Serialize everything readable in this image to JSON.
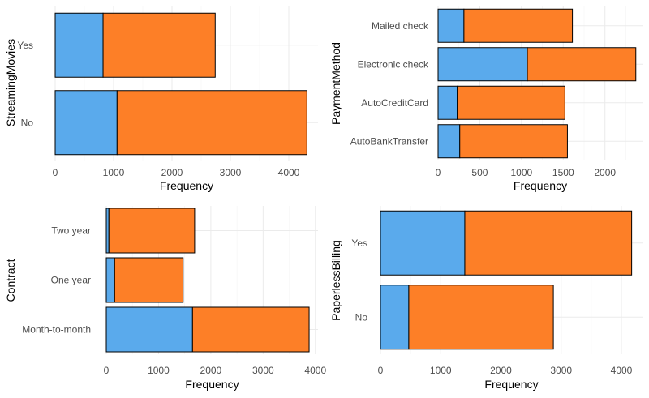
{
  "colors": {
    "primary_segment": "#5aaaec",
    "secondary_segment": "#fd7f27"
  },
  "chart_data": [
    {
      "type": "bar",
      "orientation": "horizontal",
      "stacked": true,
      "xlabel": "Frequency",
      "ylabel": "StreamingMovies",
      "categories": [
        "No",
        "Yes"
      ],
      "series": [
        {
          "values": [
            1060,
            820
          ]
        },
        {
          "values": [
            3250,
            1920
          ]
        }
      ],
      "xlim": [
        0,
        4500
      ],
      "xticks": [
        0,
        1000,
        2000,
        3000,
        4000
      ],
      "grid": true
    },
    {
      "type": "bar",
      "orientation": "horizontal",
      "stacked": true,
      "xlabel": "Frequency",
      "ylabel": "PaymentMethod",
      "categories": [
        "AutoBankTransfer",
        "AutoCreditCard",
        "Electronic check",
        "Mailed check"
      ],
      "series": [
        {
          "values": [
            260,
            230,
            1070,
            310
          ]
        },
        {
          "values": [
            1290,
            1290,
            1300,
            1300
          ]
        }
      ],
      "xlim": [
        0,
        2450
      ],
      "xticks": [
        0,
        500,
        1000,
        1500,
        2000
      ],
      "grid": true
    },
    {
      "type": "bar",
      "orientation": "horizontal",
      "stacked": true,
      "xlabel": "Frequency",
      "ylabel": "Contract",
      "categories": [
        "Month-to-month",
        "One year",
        "Two year"
      ],
      "series": [
        {
          "values": [
            1650,
            160,
            50
          ]
        },
        {
          "values": [
            2230,
            1310,
            1640
          ]
        }
      ],
      "xlim": [
        0,
        4050
      ],
      "xticks": [
        0,
        1000,
        2000,
        3000,
        4000
      ],
      "grid": true
    },
    {
      "type": "bar",
      "orientation": "horizontal",
      "stacked": true,
      "xlabel": "Frequency",
      "ylabel": "PaperlessBilling",
      "categories": [
        "No",
        "Yes"
      ],
      "series": [
        {
          "values": [
            470,
            1400
          ]
        },
        {
          "values": [
            2400,
            2770
          ]
        }
      ],
      "xlim": [
        0,
        4350
      ],
      "xticks": [
        0,
        1000,
        2000,
        3000,
        4000
      ],
      "grid": true
    }
  ]
}
